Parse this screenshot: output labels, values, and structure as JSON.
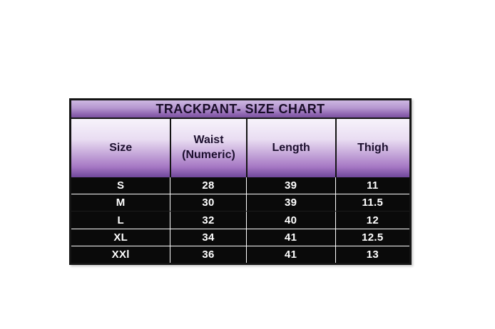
{
  "chart_data": {
    "type": "table",
    "title": "TRACKPANT- SIZE CHART",
    "columns": [
      "Size",
      "Waist (Numeric)",
      "Length",
      "Thigh"
    ],
    "rows": [
      [
        "S",
        "28",
        "39",
        "11"
      ],
      [
        "M",
        "30",
        "39",
        "11.5"
      ],
      [
        "L",
        "32",
        "40",
        "12"
      ],
      [
        "XL",
        "34",
        "41",
        "12.5"
      ],
      [
        "XXl",
        "36",
        "41",
        "13"
      ]
    ],
    "layout_hints": {
      "grid": "white lines on black data area",
      "legend": "none"
    }
  },
  "colors": {
    "page_background": "#ffffff",
    "table_border": "#141414",
    "title_gradient_top": "#cdb8e2",
    "title_gradient_bottom": "#7b52a0",
    "header_gradient_top": "#f7f3fb",
    "header_gradient_bottom": "#70479b",
    "header_text": "#1c0f2e",
    "data_background": "#0a0a0a",
    "data_text": "#ffffff"
  }
}
